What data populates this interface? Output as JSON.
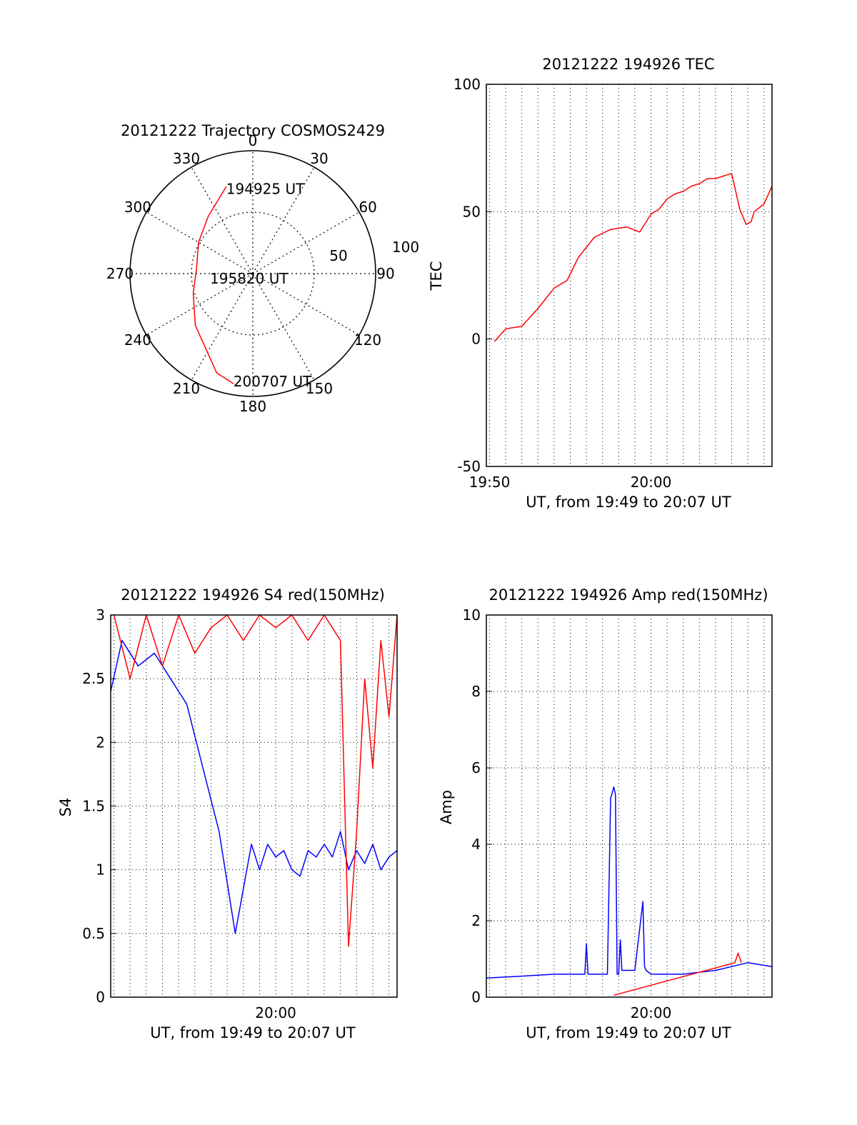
{
  "colors": {
    "red": "#ff0000",
    "blue": "#0000ff",
    "grid": "#000000",
    "axis": "#000000"
  },
  "chart_data": [
    {
      "type": "polar",
      "title": "20121222 Trajectory COSMOS2429",
      "azimuth_labels": [
        "0",
        "30",
        "60",
        "90",
        "120",
        "150",
        "180",
        "210",
        "240",
        "270",
        "300",
        "330"
      ],
      "radial_labels": [
        "50",
        "100"
      ],
      "annotations": [
        "194925 UT",
        "195820 UT",
        "200707 UT"
      ],
      "trajectory": {
        "color": "red",
        "points": [
          {
            "az": 343,
            "r": 74
          },
          {
            "az": 322,
            "r": 59
          },
          {
            "az": 300,
            "r": 51
          },
          {
            "az": 275,
            "r": 46
          },
          {
            "az": 252,
            "r": 51
          },
          {
            "az": 228,
            "r": 63
          },
          {
            "az": 200,
            "r": 86
          },
          {
            "az": 190,
            "r": 91
          }
        ]
      }
    },
    {
      "type": "line",
      "title": "20121222 194926 TEC",
      "xlabel": "UT, from 19:49 to 20:07 UT",
      "ylabel": "TEC",
      "xlim_minutes": [
        19.8,
        37.5
      ],
      "ylim": [
        -50,
        100
      ],
      "yticks": [
        "-50",
        "0",
        "50",
        "100"
      ],
      "xticks": [
        {
          "label": "19:50",
          "minute": 20
        },
        {
          "label": "20:00",
          "minute": 30
        }
      ],
      "grid": true,
      "series": [
        {
          "color": "red",
          "x_minutes": [
            20.3,
            21.0,
            22.0,
            23.0,
            24.0,
            24.8,
            25.5,
            26.5,
            27.5,
            28.5,
            29.3,
            30.0,
            30.5,
            31.0,
            31.5,
            32.0,
            32.5,
            33.0,
            33.5,
            34.0,
            34.5,
            35.0,
            35.5,
            35.9,
            36.2,
            36.4,
            37.0,
            37.5
          ],
          "y": [
            -1,
            4,
            5,
            12,
            20,
            23,
            32,
            40,
            43,
            44,
            42,
            49,
            51,
            55,
            57,
            58,
            60,
            61,
            63,
            63,
            64,
            65,
            51,
            45,
            46,
            50,
            53,
            60
          ]
        }
      ]
    },
    {
      "type": "line",
      "title": "20121222 194926 S4 red(150MHz)",
      "xlabel": "UT, from 19:49 to 20:07 UT",
      "ylabel": "S4",
      "xlim_minutes": [
        19.8,
        37.5
      ],
      "ylim": [
        0,
        3
      ],
      "yticks": [
        "0",
        "0.5",
        "1",
        "1.5",
        "2",
        "2.5",
        "3"
      ],
      "xticks": [
        {
          "label": "20:00",
          "minute": 30
        }
      ],
      "grid": true,
      "series": [
        {
          "color": "blue",
          "x_minutes": [
            19.8,
            20.5,
            21.5,
            22.5,
            23.5,
            24.5,
            25.5,
            26.5,
            27.5,
            28.5,
            29.0,
            29.5,
            30.0,
            30.5,
            31.0,
            31.5,
            32.0,
            32.5,
            33.0,
            33.5,
            34.0,
            34.5,
            35.0,
            35.5,
            36.0,
            36.5,
            37.0,
            37.5
          ],
          "y": [
            2.4,
            2.8,
            2.6,
            2.7,
            2.5,
            2.3,
            1.8,
            1.3,
            0.5,
            1.2,
            1.0,
            1.2,
            1.1,
            1.15,
            1.0,
            0.95,
            1.15,
            1.1,
            1.2,
            1.1,
            1.3,
            1.0,
            1.15,
            1.05,
            1.2,
            1.0,
            1.1,
            1.15
          ]
        },
        {
          "color": "red",
          "x_minutes": [
            20.0,
            21.0,
            22.0,
            23.0,
            24.0,
            25.0,
            26.0,
            27.0,
            28.0,
            29.0,
            30.0,
            31.0,
            32.0,
            33.0,
            34.0,
            34.5,
            35.0,
            35.5,
            36.0,
            36.5,
            37.0,
            37.5
          ],
          "y": [
            3.0,
            2.5,
            3.0,
            2.6,
            3.0,
            2.7,
            2.9,
            3.0,
            2.8,
            3.0,
            2.9,
            3.0,
            2.8,
            3.0,
            2.8,
            0.4,
            1.3,
            2.5,
            1.8,
            2.8,
            2.2,
            3.0
          ]
        }
      ]
    },
    {
      "type": "line",
      "title": "20121222 194926 Amp red(150MHz)",
      "xlabel": "UT, from 19:49 to 20:07 UT",
      "ylabel": "Amp",
      "xlim_minutes": [
        19.8,
        37.5
      ],
      "ylim": [
        0,
        10
      ],
      "yticks": [
        "0",
        "2",
        "4",
        "6",
        "8",
        "10"
      ],
      "xticks": [
        {
          "label": "20:00",
          "minute": 30
        }
      ],
      "grid": true,
      "series": [
        {
          "color": "blue",
          "x_minutes": [
            19.8,
            22.0,
            24.0,
            25.9,
            26.0,
            26.1,
            27.3,
            27.5,
            27.7,
            27.8,
            27.9,
            28.0,
            28.1,
            28.2,
            29.0,
            29.5,
            29.6,
            29.7,
            30.0,
            32.0,
            34.0,
            35.0,
            36.0,
            37.5
          ],
          "y": [
            0.5,
            0.55,
            0.6,
            0.6,
            1.4,
            0.6,
            0.6,
            5.2,
            5.5,
            5.3,
            0.6,
            0.6,
            1.5,
            0.7,
            0.7,
            2.5,
            0.8,
            0.7,
            0.6,
            0.6,
            0.7,
            0.8,
            0.9,
            0.8
          ]
        },
        {
          "color": "red",
          "x_minutes": [
            27.7,
            35.2,
            35.4,
            35.6
          ],
          "y": [
            0.05,
            0.9,
            1.15,
            0.9
          ]
        }
      ]
    }
  ]
}
